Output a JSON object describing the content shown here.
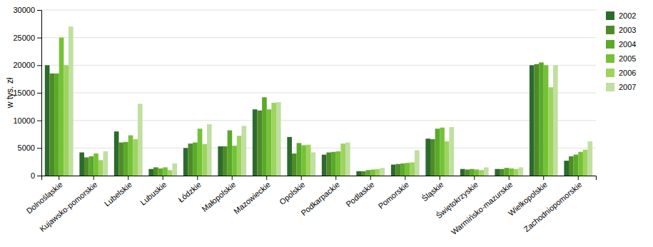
{
  "chart_data": {
    "type": "bar",
    "categories": [
      "Dolnośląskie",
      "Kujawsko-pomorskie",
      "Lubelskie",
      "Lubuskie",
      "Łódzkie",
      "Małopolskie",
      "Mazowieckie",
      "Opolskie",
      "Podkarpackie",
      "Podlaskie",
      "Pomorskie",
      "Śląskie",
      "Świętokrzyskie",
      "Warmińsko-mazurskie",
      "Wielkopolskie",
      "Zachodniopomorskie"
    ],
    "series": [
      {
        "name": "2002",
        "color": "#2d6a2d",
        "values": [
          20000,
          4200,
          8000,
          1200,
          5000,
          5300,
          12000,
          7000,
          3800,
          800,
          2000,
          6700,
          1200,
          1200,
          20000,
          2700
        ]
      },
      {
        "name": "2003",
        "color": "#4d8c27",
        "values": [
          18500,
          3300,
          6000,
          1500,
          5800,
          5300,
          11800,
          4000,
          4200,
          800,
          2100,
          6600,
          1100,
          1200,
          20200,
          3500
        ]
      },
      {
        "name": "2004",
        "color": "#5aaa2a",
        "values": [
          18500,
          3500,
          6100,
          1300,
          6000,
          8200,
          14200,
          5900,
          4300,
          1000,
          2200,
          8500,
          1200,
          1400,
          20500,
          3800
        ]
      },
      {
        "name": "2005",
        "color": "#74c235",
        "values": [
          25000,
          4000,
          7300,
          1500,
          8500,
          5400,
          12000,
          5500,
          4400,
          1100,
          2300,
          8700,
          1100,
          1300,
          20000,
          4300
        ]
      },
      {
        "name": "2006",
        "color": "#9dd45e",
        "values": [
          20000,
          2800,
          6600,
          1000,
          5700,
          7200,
          13200,
          5600,
          5800,
          1200,
          2400,
          6200,
          1000,
          1200,
          16000,
          4700
        ]
      },
      {
        "name": "2007",
        "color": "#c0dfa0",
        "values": [
          27000,
          4400,
          13000,
          2200,
          9300,
          9000,
          13300,
          4200,
          6000,
          1400,
          4600,
          8800,
          1500,
          1500,
          20000,
          6200
        ]
      }
    ],
    "ylabel": "w tys. zł",
    "ylim": [
      0,
      30000
    ],
    "yticks": [
      0,
      5000,
      10000,
      15000,
      20000,
      25000,
      30000
    ],
    "grid": true,
    "legend": "right"
  }
}
